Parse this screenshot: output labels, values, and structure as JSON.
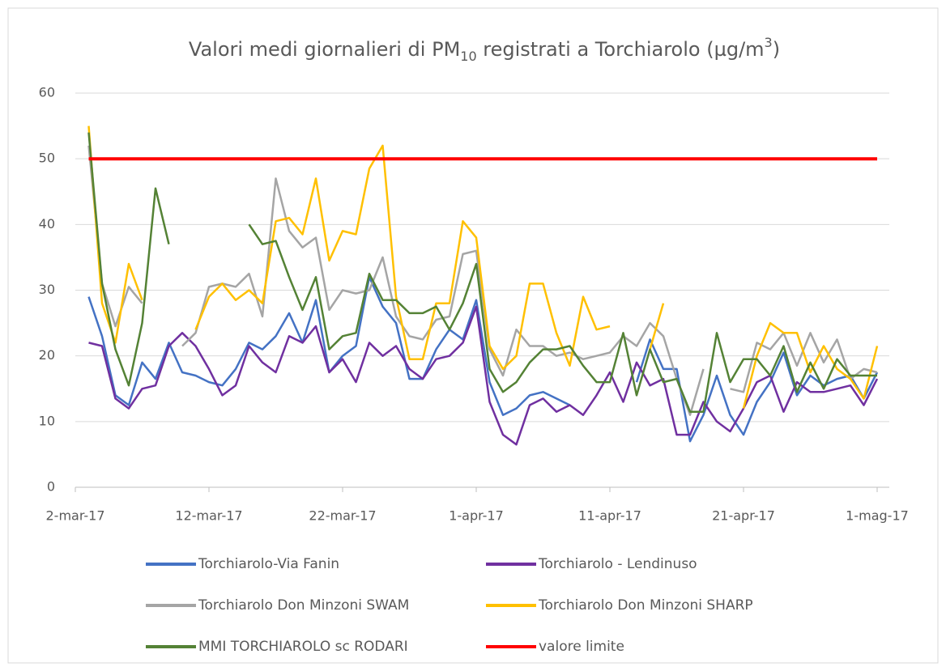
{
  "chart_data": {
    "type": "line",
    "title_parts": [
      "Valori medi giornalieri di PM",
      "10",
      " registrati a Torchiarolo (µg/m",
      "3",
      ")"
    ],
    "categories": [
      "2-mar-17",
      null,
      null,
      null,
      null,
      null,
      null,
      null,
      null,
      null,
      "12-mar-17",
      null,
      null,
      null,
      null,
      null,
      null,
      null,
      null,
      null,
      "22-mar-17",
      null,
      null,
      null,
      null,
      null,
      null,
      null,
      null,
      null,
      "1-apr-17",
      null,
      null,
      null,
      null,
      null,
      null,
      null,
      null,
      null,
      "11-apr-17",
      null,
      null,
      null,
      null,
      null,
      null,
      null,
      null,
      null,
      "21-apr-17",
      null,
      null,
      null,
      null,
      null,
      null,
      null,
      null,
      null,
      "1-mag-17"
    ],
    "ylim": [
      0,
      60
    ],
    "yticks": [
      0,
      10,
      20,
      30,
      40,
      50,
      60
    ],
    "grid": true,
    "series": [
      {
        "name": "Torchiarolo-Via Fanin",
        "color": "#4472c4",
        "values": [
          null,
          29,
          23,
          14,
          12.5,
          19,
          16.5,
          22,
          17.5,
          17,
          16,
          15.5,
          18,
          22,
          21,
          23,
          26.5,
          22,
          28.5,
          17.5,
          20,
          21.5,
          32,
          27.5,
          25,
          16.5,
          16.5,
          21,
          24,
          22.5,
          28.5,
          16,
          11,
          12,
          14,
          14.5,
          13.5,
          12.5,
          null,
          null,
          null,
          null,
          16,
          22.5,
          18,
          18,
          7,
          11,
          17,
          11,
          8,
          13,
          16,
          20.5,
          14,
          17,
          15.5,
          16.5,
          17,
          13.5,
          17.5
        ]
      },
      {
        "name": "Torchiarolo - Lendinuso",
        "color": "#7030a0",
        "values": [
          null,
          22,
          21.5,
          13.5,
          12,
          15,
          15.5,
          21.5,
          23.5,
          21.5,
          18,
          14,
          15.5,
          21.5,
          19,
          17.5,
          23,
          22,
          24.5,
          17.5,
          19.5,
          16,
          22,
          20,
          21.5,
          18,
          16.5,
          19.5,
          20,
          22,
          27.5,
          13,
          8,
          6.5,
          12.5,
          13.5,
          11.5,
          12.5,
          11,
          14,
          17.5,
          13,
          19,
          15.5,
          16.5,
          8,
          8,
          13,
          10,
          8.5,
          12,
          16,
          17,
          11.5,
          16,
          14.5,
          14.5,
          15,
          15.5,
          12.5,
          16.5
        ]
      },
      {
        "name": "Torchiarolo Don Minzoni SWAM",
        "color": "#a5a5a5",
        "values": [
          null,
          52,
          31,
          24.5,
          30.5,
          28,
          null,
          null,
          21.5,
          23.5,
          30.5,
          31,
          30.5,
          32.5,
          26,
          47,
          39,
          36.5,
          38,
          27,
          30,
          29.5,
          30,
          35,
          26,
          23,
          22.5,
          25.5,
          26,
          35.5,
          36,
          21,
          17,
          24,
          21.5,
          21.5,
          20,
          20.5,
          19.5,
          20,
          20.5,
          23,
          21.5,
          25,
          23,
          16.5,
          11,
          18,
          null,
          15,
          14.5,
          22,
          21,
          23.5,
          18.5,
          23.5,
          19,
          22.5,
          16.5,
          18,
          17.5
        ]
      },
      {
        "name": "Torchiarolo Don Minzoni SHARP",
        "color": "#ffc000",
        "values": [
          null,
          55,
          28,
          22,
          34,
          28.5,
          null,
          null,
          null,
          24,
          29,
          31,
          28.5,
          30,
          28,
          40.5,
          41,
          38.5,
          47,
          34.5,
          39,
          38.5,
          48.5,
          52,
          29,
          19.5,
          19.5,
          28,
          28,
          40.5,
          38,
          21.5,
          18,
          20,
          31,
          31,
          23.5,
          18.5,
          29,
          24,
          24.5,
          null,
          null,
          21,
          28,
          null,
          null,
          null,
          null,
          null,
          12,
          20,
          25,
          23.5,
          23.5,
          17.5,
          21.5,
          18,
          16.5,
          13.5,
          21.5
        ]
      },
      {
        "name": "MMI TORCHIAROLO sc RODARI",
        "color": "#548235",
        "values": [
          null,
          54,
          31,
          21,
          15.5,
          25,
          45.5,
          37,
          null,
          null,
          null,
          null,
          null,
          40,
          37,
          37.5,
          32,
          27,
          32,
          21,
          23,
          23.5,
          32.5,
          28.5,
          28.5,
          26.5,
          26.5,
          27.5,
          24,
          28,
          34,
          18,
          14.5,
          16,
          19,
          21,
          21,
          21.5,
          18.5,
          16,
          16,
          23.5,
          14,
          21,
          16,
          16.5,
          11.5,
          11.5,
          23.5,
          16,
          19.5,
          19.5,
          17,
          21.5,
          14.5,
          19,
          15,
          19.5,
          17,
          17,
          17
        ]
      },
      {
        "name": "valore limite",
        "color": "#ff0000",
        "values": [
          null,
          50,
          50,
          50,
          50,
          50,
          50,
          50,
          50,
          50,
          50,
          50,
          50,
          50,
          50,
          50,
          50,
          50,
          50,
          50,
          50,
          50,
          50,
          50,
          50,
          50,
          50,
          50,
          50,
          50,
          50,
          50,
          50,
          50,
          50,
          50,
          50,
          50,
          50,
          50,
          50,
          50,
          50,
          50,
          50,
          50,
          50,
          50,
          50,
          50,
          50,
          50,
          50,
          50,
          50,
          50,
          50,
          50,
          50,
          50,
          50
        ]
      }
    ]
  }
}
